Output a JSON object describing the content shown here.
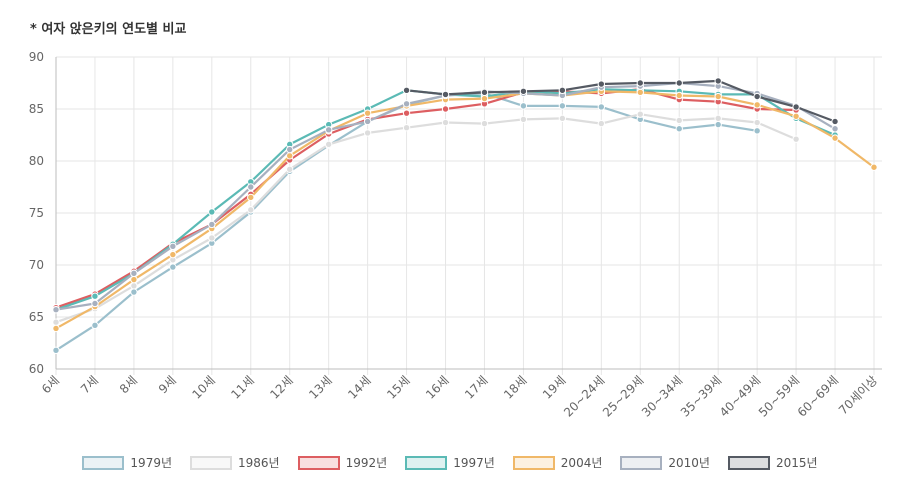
{
  "chart_data": {
    "type": "line",
    "title": "* 여자 앉은키의 연도별 비교",
    "xlabel": "",
    "ylabel": "",
    "ylim": [
      60,
      90
    ],
    "yticks": [
      60,
      65,
      70,
      75,
      80,
      85,
      90
    ],
    "categories": [
      "6세",
      "7세",
      "8세",
      "9세",
      "10세",
      "11세",
      "12세",
      "13세",
      "14세",
      "15세",
      "16세",
      "17세",
      "18세",
      "19세",
      "20~24세",
      "25~29세",
      "30~34세",
      "35~39세",
      "40~49세",
      "50~59세",
      "60~69세",
      "70세이상"
    ],
    "series": [
      {
        "name": "1979년",
        "color": "#9bbfcc",
        "values": [
          61.8,
          64.2,
          67.4,
          69.8,
          72.1,
          75.1,
          79.0,
          81.5,
          83.8,
          85.4,
          86.3,
          86.5,
          85.3,
          85.3,
          85.2,
          84.0,
          83.1,
          83.5,
          82.9,
          null,
          null,
          null
        ]
      },
      {
        "name": "1986년",
        "color": "#dddddd",
        "values": [
          64.5,
          65.8,
          68.0,
          70.5,
          72.6,
          75.3,
          79.2,
          81.6,
          82.7,
          83.2,
          83.7,
          83.6,
          84.0,
          84.1,
          83.6,
          84.5,
          83.9,
          84.1,
          83.7,
          82.1,
          null,
          null
        ]
      },
      {
        "name": "1992년",
        "color": "#dd5e61",
        "values": [
          65.9,
          67.2,
          69.4,
          72.1,
          73.9,
          76.8,
          80.1,
          82.6,
          84.0,
          84.6,
          85.0,
          85.5,
          86.6,
          86.7,
          86.5,
          86.9,
          85.9,
          85.7,
          85.0,
          84.9,
          null,
          null
        ]
      },
      {
        "name": "1997년",
        "color": "#5bbab5",
        "values": [
          65.7,
          67.0,
          69.2,
          72.0,
          75.1,
          78.0,
          81.6,
          83.5,
          85.0,
          86.8,
          86.4,
          86.2,
          86.7,
          86.5,
          86.9,
          86.8,
          86.7,
          86.4,
          86.4,
          84.1,
          82.5,
          null
        ]
      },
      {
        "name": "2004년",
        "color": "#f0b868",
        "values": [
          63.9,
          66.0,
          68.6,
          71.0,
          73.5,
          76.5,
          80.5,
          82.9,
          84.6,
          85.3,
          85.9,
          86.0,
          86.5,
          86.3,
          86.7,
          86.6,
          86.3,
          86.2,
          85.4,
          84.3,
          82.2,
          79.4
        ]
      },
      {
        "name": "2010년",
        "color": "#a7b0bf",
        "values": [
          65.7,
          66.3,
          69.2,
          71.8,
          73.9,
          77.5,
          81.1,
          83.0,
          83.8,
          85.5,
          86.3,
          86.7,
          86.5,
          86.3,
          87.1,
          87.2,
          87.5,
          87.2,
          86.5,
          85.3,
          83.1,
          null
        ]
      },
      {
        "name": "2015년",
        "color": "#555a63",
        "values": [
          null,
          null,
          null,
          null,
          null,
          null,
          null,
          null,
          null,
          86.8,
          86.4,
          86.6,
          86.7,
          86.8,
          87.4,
          87.5,
          87.5,
          87.7,
          86.2,
          85.2,
          83.8,
          null
        ]
      }
    ]
  }
}
